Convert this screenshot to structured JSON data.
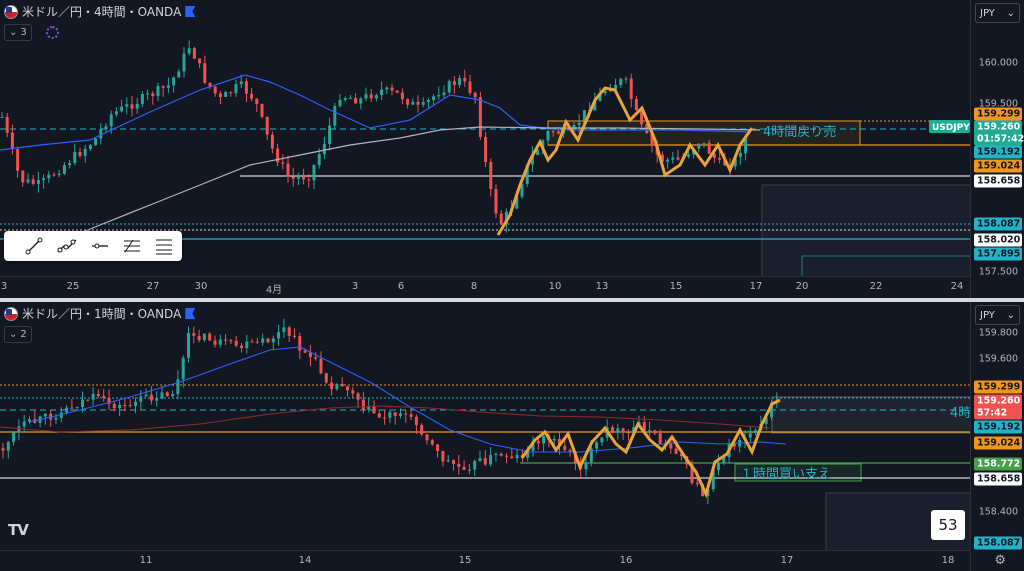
{
  "colors": {
    "background": "#131722",
    "up": "#26a69a",
    "down": "#ef5350",
    "wave": "#e8a33b",
    "ma_blue": "#2962ff",
    "ma_white": "#b2b5be",
    "ma_red": "#8e2a2a",
    "orange_level": "#f0961e",
    "teal_level": "#22b3c9",
    "white_level": "#d1d4dc"
  },
  "top": {
    "symbol": "米ドル／円・4時間・OANDA",
    "indicator_count": "3",
    "currency": "JPY",
    "annotation": "4時間戻り売",
    "price_ticks": [
      "160.000",
      "159.500",
      "157.500"
    ],
    "labels": [
      {
        "text": "159.299",
        "bg": "#f0961e",
        "fg": "#131722"
      },
      {
        "text": "159.260",
        "bg": "#22ab94",
        "fg": "#ffffff"
      },
      {
        "text": "01:57:42",
        "bg": "#22ab94",
        "fg": "#ffffff"
      },
      {
        "text": "159.192",
        "bg": "#22b3c9",
        "fg": "#131722"
      },
      {
        "text": "159.024",
        "bg": "#f0961e",
        "fg": "#131722"
      },
      {
        "text": "158.658",
        "bg": "#ffffff",
        "fg": "#131722"
      },
      {
        "text": "158.087",
        "bg": "#22b3c9",
        "fg": "#131722"
      },
      {
        "text": "158.020",
        "bg": "#ffffff",
        "fg": "#131722"
      },
      {
        "text": "157.895",
        "bg": "#22b3c9",
        "fg": "#131722"
      }
    ],
    "symbol_badge": "USDJPY",
    "time_labels": [
      "3",
      "25",
      "27",
      "30",
      "4月",
      "3",
      "6",
      "8",
      "10",
      "13",
      "15",
      "17",
      "20",
      "22",
      "24"
    ]
  },
  "bottom": {
    "symbol": "米ドル／円・1時間・OANDA",
    "indicator_count": "2",
    "currency": "JPY",
    "annotation": "１時間買い支え",
    "annotation_cut": "4時",
    "price_ticks": [
      "159.800",
      "159.600",
      "158.400"
    ],
    "labels": [
      {
        "text": "159.299",
        "bg": "#f0961e",
        "fg": "#131722"
      },
      {
        "text": "159.260",
        "bg": "#ef5350",
        "fg": "#ffffff"
      },
      {
        "text": "57:42",
        "bg": "#ef5350",
        "fg": "#ffffff"
      },
      {
        "text": "159.192",
        "bg": "#22b3c9",
        "fg": "#131722"
      },
      {
        "text": "159.024",
        "bg": "#f0961e",
        "fg": "#131722"
      },
      {
        "text": "158.772",
        "bg": "#43a047",
        "fg": "#ffffff"
      },
      {
        "text": "158.658",
        "bg": "#ffffff",
        "fg": "#131722"
      },
      {
        "text": "158.087",
        "bg": "#22b3c9",
        "fg": "#131722"
      }
    ],
    "time_labels": [
      "11",
      "14",
      "15",
      "16",
      "17",
      "18"
    ],
    "bar_count": "53",
    "logo": "TV"
  },
  "drawing_toolbar": {
    "tools": [
      "trend-line-icon",
      "ray-icon",
      "horizontal-line-icon",
      "fib-icon",
      "parallel-channel-icon"
    ]
  }
}
